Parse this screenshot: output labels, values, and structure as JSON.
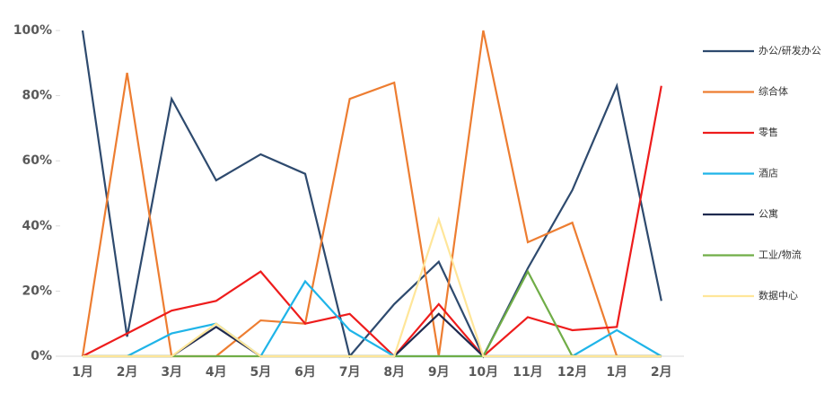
{
  "chart_data": {
    "type": "line",
    "categories": [
      "1月",
      "2月",
      "3月",
      "4月",
      "5月",
      "6月",
      "7月",
      "8月",
      "9月",
      "10月",
      "11月",
      "12月",
      "1月",
      "2月"
    ],
    "series": [
      {
        "name": "办公/研发办公",
        "color": "#2e4a6e",
        "values": [
          100,
          6,
          79,
          54,
          62,
          56,
          0,
          16,
          29,
          0,
          27,
          51,
          83,
          17
        ]
      },
      {
        "name": "综合体",
        "color": "#ed7d31",
        "values": [
          0,
          87,
          0,
          0,
          11,
          10,
          79,
          84,
          0,
          100,
          35,
          41,
          0,
          0
        ]
      },
      {
        "name": "零售",
        "color": "#ee1c1c",
        "values": [
          0,
          7,
          14,
          17,
          26,
          10,
          13,
          0,
          16,
          0,
          12,
          8,
          9,
          83
        ]
      },
      {
        "name": "酒店",
        "color": "#1fb4e8",
        "values": [
          null,
          0,
          7,
          10,
          0,
          23,
          8,
          0,
          0,
          0,
          0,
          0,
          8,
          0
        ]
      },
      {
        "name": "公寓",
        "color": "#1f2a4f",
        "values": [
          0,
          0,
          0,
          9,
          0,
          0,
          0,
          0,
          13,
          0,
          0,
          0,
          0,
          0
        ]
      },
      {
        "name": "工业/物流",
        "color": "#70ad47",
        "values": [
          0,
          0,
          0,
          0,
          0,
          0,
          0,
          0,
          0,
          0,
          26,
          0,
          0,
          0
        ]
      },
      {
        "name": "数据中心",
        "color": "#ffe699",
        "values": [
          0,
          0,
          0,
          10,
          0,
          0,
          0,
          0,
          42,
          0,
          0,
          0,
          0,
          0
        ]
      }
    ],
    "ylim": [
      0,
      100
    ],
    "yticks": [
      {
        "value": 0,
        "label": "0%"
      },
      {
        "value": 20,
        "label": "20%"
      },
      {
        "value": 40,
        "label": "40%"
      },
      {
        "value": 60,
        "label": "60%"
      },
      {
        "value": 80,
        "label": "80%"
      },
      {
        "value": 100,
        "label": "100%"
      }
    ]
  }
}
